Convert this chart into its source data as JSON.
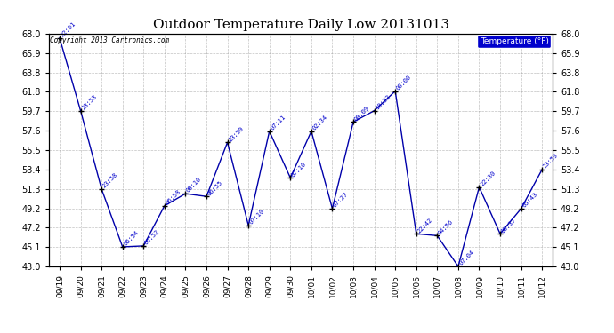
{
  "title": "Outdoor Temperature Daily Low 20131013",
  "copyright": "Copyright 2013 Cartronics.com",
  "legend_label": "Temperature (°F)",
  "dates": [
    "09/19",
    "09/20",
    "09/21",
    "09/22",
    "09/23",
    "09/24",
    "09/25",
    "09/26",
    "09/27",
    "09/28",
    "09/29",
    "09/30",
    "10/01",
    "10/02",
    "10/03",
    "10/04",
    "10/05",
    "10/06",
    "10/07",
    "10/08",
    "10/09",
    "10/10",
    "10/11",
    "10/12"
  ],
  "values": [
    67.5,
    59.7,
    51.3,
    45.1,
    45.2,
    49.5,
    50.8,
    50.5,
    56.3,
    47.4,
    57.5,
    52.5,
    57.5,
    49.2,
    58.5,
    59.7,
    61.8,
    46.5,
    46.3,
    43.0,
    51.5,
    46.5,
    49.2,
    53.4
  ],
  "time_labels": [
    "22:01",
    "23:53",
    "23:58",
    "06:54",
    "06:52",
    "06:58",
    "06:10",
    "06:55",
    "23:59",
    "07:10",
    "07:11",
    "07:10",
    "02:34",
    "07:27",
    "00:09",
    "10:22",
    "00:00",
    "22:42",
    "04:56",
    "07:04",
    "22:30",
    "06:37",
    "05:43",
    "23:59"
  ],
  "yticks": [
    43.0,
    45.1,
    47.2,
    49.2,
    51.3,
    53.4,
    55.5,
    57.6,
    59.7,
    61.8,
    63.8,
    65.9,
    68.0
  ],
  "ymin": 43.0,
  "ymax": 68.0,
  "line_color": "#0000aa",
  "marker_color": "#000000",
  "label_color": "#0000cc",
  "background_color": "#ffffff",
  "grid_color": "#999999",
  "title_fontsize": 11,
  "legend_bg": "#0000cc",
  "legend_fg": "#ffffff"
}
